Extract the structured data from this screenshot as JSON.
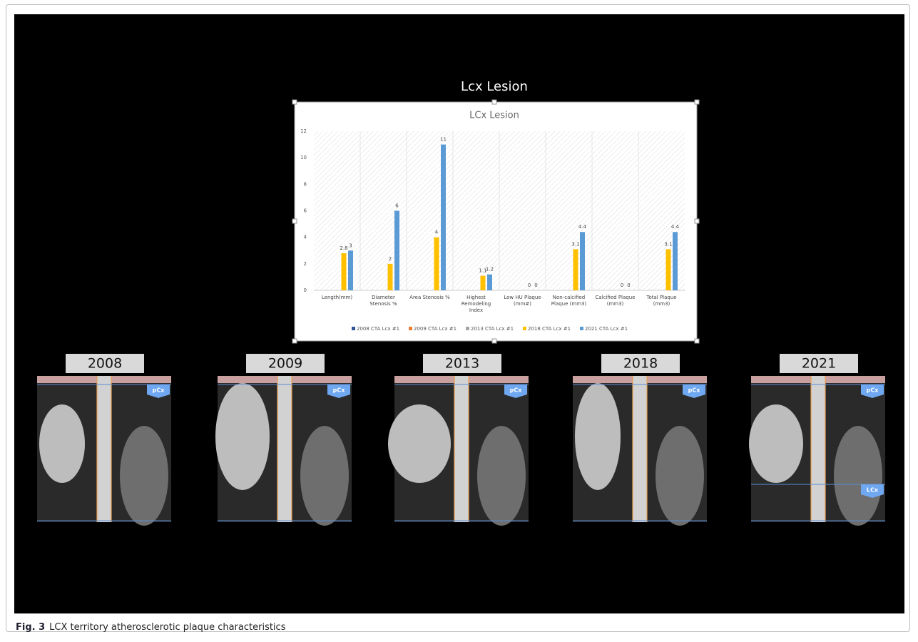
{
  "figure_title": "Lcx Lesion",
  "chart_data": {
    "type": "bar",
    "title": "LCx Lesion",
    "categories": [
      "Length(mm)",
      "Diameter Stenosis %",
      "Area Stenosis %",
      "Highest Remodeling Index",
      "Low HU Plaque (mm#)",
      "Non-calcified Plaque (mm3)",
      "Calcified Plaque (mm3)",
      "Total Plaque (mm3)"
    ],
    "series": [
      {
        "name": "2008 CTA Lcx #1",
        "color": "#2f5597",
        "values": [
          null,
          null,
          null,
          null,
          null,
          null,
          null,
          null
        ]
      },
      {
        "name": "2009 CTA Lcx #1",
        "color": "#ed7d31",
        "values": [
          null,
          null,
          null,
          null,
          null,
          null,
          null,
          null
        ]
      },
      {
        "name": "2013 CTA Lcx #1",
        "color": "#a5a5a5",
        "values": [
          null,
          null,
          null,
          null,
          null,
          null,
          null,
          null
        ]
      },
      {
        "name": "2018 CTA  Lcx #1",
        "color": "#ffc000",
        "values": [
          2.8,
          2,
          4,
          1.1,
          0,
          3.1,
          0,
          3.1
        ]
      },
      {
        "name": "2021 CTA  Lcx #1",
        "color": "#5b9bd5",
        "values": [
          3,
          6,
          11,
          1.2,
          0,
          4.4,
          0,
          4.4
        ]
      }
    ],
    "ylim": [
      0,
      12
    ],
    "yticks": [
      0,
      2,
      4,
      6,
      8,
      10,
      12
    ],
    "grid": false,
    "legend": "bottom"
  },
  "panels": [
    {
      "label": "2008",
      "tags": [
        "pCx"
      ]
    },
    {
      "label": "2009",
      "tags": [
        "pCx"
      ]
    },
    {
      "label": "2013",
      "tags": [
        "pCx"
      ]
    },
    {
      "label": "2018",
      "tags": [
        "pCx"
      ]
    },
    {
      "label": "2021",
      "tags": [
        "pCx",
        "LCx"
      ]
    }
  ],
  "caption": {
    "label": "Fig. 3",
    "text": "LCX territory atherosclerotic plaque characteristics"
  }
}
